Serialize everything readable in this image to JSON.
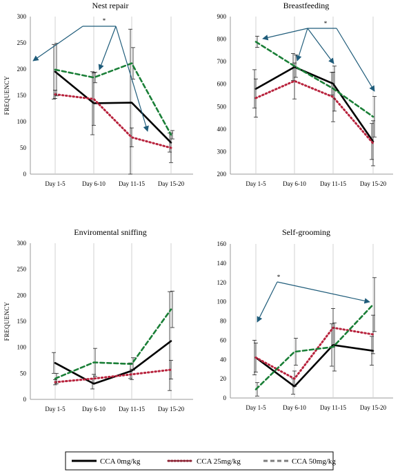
{
  "legend": {
    "items": [
      {
        "label": "CCA 0mg/kg",
        "color": "#000000",
        "dash": "solid"
      },
      {
        "label": "CCA 25mg/kg",
        "color": "#b8233d",
        "dash": "dotted"
      },
      {
        "label": "CCA 50mg/kg",
        "color": "#1a7f37",
        "dash": "dashed"
      }
    ]
  },
  "chart_data": [
    {
      "type": "line",
      "title": "Nest repair",
      "ylabel": "FREQUENCY",
      "categories": [
        "Day 1-5",
        "Day 6-10",
        "Day 11-15",
        "Day 15-20"
      ],
      "ylim": [
        0,
        300
      ],
      "yticks": [
        0,
        50,
        100,
        150,
        200,
        250,
        300
      ],
      "series": [
        {
          "values": [
            195,
            135,
            136,
            60
          ],
          "errors": [
            52,
            60,
            140,
            18
          ]
        },
        {
          "values": [
            152,
            143,
            70,
            50
          ],
          "errors": [
            8,
            50,
            18,
            28
          ]
        },
        {
          "values": [
            199,
            184,
            211,
            75
          ],
          "errors": [
            50,
            10,
            30,
            8
          ]
        }
      ],
      "significance": "*"
    },
    {
      "type": "line",
      "title": "Breastfeeding",
      "ylabel": "",
      "categories": [
        "Day 1-5",
        "Day 6-10",
        "Day 11-15",
        "Day 15-20"
      ],
      "ylim": [
        200,
        900
      ],
      "yticks": [
        200,
        300,
        400,
        500,
        600,
        700,
        800,
        900
      ],
      "series": [
        {
          "values": [
            579,
            676,
            602,
            345
          ],
          "errors": [
            85,
            60,
            50,
            80
          ]
        },
        {
          "values": [
            538,
            614,
            543,
            337
          ],
          "errors": [
            85,
            80,
            110,
            100
          ]
        },
        {
          "values": [
            788,
            680,
            580,
            455
          ],
          "errors": [
            25,
            50,
            100,
            90
          ]
        }
      ],
      "significance": "*"
    },
    {
      "type": "line",
      "title": "Enviromental sniffing",
      "ylabel": "FREQUENCY",
      "categories": [
        "Day 1-5",
        "Day 6-10",
        "Day 11-15",
        "Day 15-20"
      ],
      "ylim": [
        0,
        300
      ],
      "yticks": [
        0,
        50,
        100,
        150,
        200,
        250,
        300
      ],
      "series": [
        {
          "values": [
            70,
            30,
            55,
            112
          ],
          "errors": [
            20,
            10,
            15,
            95
          ]
        },
        {
          "values": [
            33,
            40,
            48,
            57
          ],
          "errors": [
            5,
            8,
            10,
            18
          ]
        },
        {
          "values": [
            40,
            71,
            68,
            173
          ],
          "errors": [
            10,
            27,
            12,
            35
          ]
        }
      ]
    },
    {
      "type": "line",
      "title": "Self-grooming",
      "ylabel": "",
      "categories": [
        "Day 1-5",
        "Day 6-10",
        "Day 11-15",
        "Day 15-20"
      ],
      "ylim": [
        0,
        160
      ],
      "yticks": [
        0,
        20,
        40,
        60,
        80,
        100,
        120,
        140,
        160
      ],
      "series": [
        {
          "values": [
            42,
            12,
            55,
            49
          ],
          "errors": [
            18,
            8,
            22,
            15
          ]
        },
        {
          "values": [
            42,
            20,
            73,
            66
          ],
          "errors": [
            15,
            8,
            20,
            20
          ]
        },
        {
          "values": [
            9,
            48,
            53,
            97
          ],
          "errors": [
            7,
            14,
            25,
            28
          ]
        }
      ],
      "significance": "*"
    }
  ]
}
